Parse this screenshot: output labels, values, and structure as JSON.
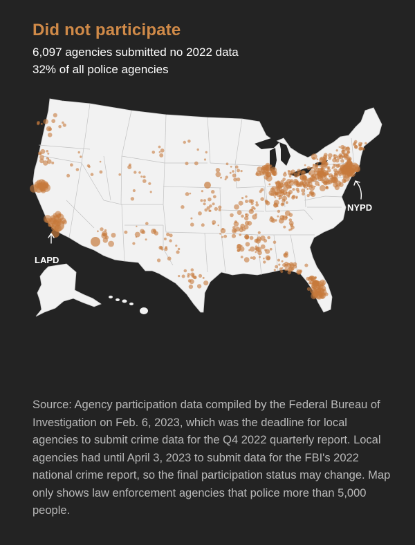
{
  "header": {
    "title": "Did not participate",
    "line1": "6,097 agencies submitted no 2022 data",
    "line2": "32% of all police agencies"
  },
  "map": {
    "region": "United States",
    "dot_color": "#c67a3c",
    "land_color": "#f2f2f2",
    "border_color": "#bdbdbd",
    "labels": {
      "lapd": "LAPD",
      "nypd": "NYPD"
    }
  },
  "footer": {
    "source": "Source: Agency participation data compiled by the Federal Bureau of Investigation on Feb. 6, 2023, which was the deadline for local agencies to submit crime data for the Q4 2022 quarterly report. Local agencies had until April 3, 2023 to submit data for the FBI's 2022 national crime report, so the final participation status may change. Map only shows law enforcement agencies that police more than 5,000 people."
  },
  "colors": {
    "background": "#232323",
    "title": "#d08a48",
    "source_text": "#b9b9b9"
  }
}
